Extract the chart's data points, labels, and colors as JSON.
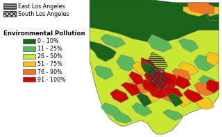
{
  "legend_title": "Environmental Pollution",
  "legend_items": [
    {
      "label": "0 - 10%",
      "color": "#1a6318"
    },
    {
      "label": "11 - 25%",
      "color": "#5cb85c"
    },
    {
      "label": "26 - 50%",
      "color": "#c8e632"
    },
    {
      "label": "51 - 75%",
      "color": "#f5c518"
    },
    {
      "label": "76 - 90%",
      "color": "#f07820"
    },
    {
      "label": "91 - 100%",
      "color": "#cc0000"
    }
  ],
  "area_labels": [
    {
      "label": "East Los Angeles",
      "hatch": "---"
    },
    {
      "label": "South Los Angeles",
      "hatch": "xxx"
    }
  ],
  "bg_color": "#ffffff",
  "colors": {
    "dark_green": "#1a6318",
    "light_green": "#5cb85c",
    "yellow_green": "#c8e632",
    "yellow": "#f5c518",
    "orange": "#f07820",
    "red": "#cc0000"
  }
}
